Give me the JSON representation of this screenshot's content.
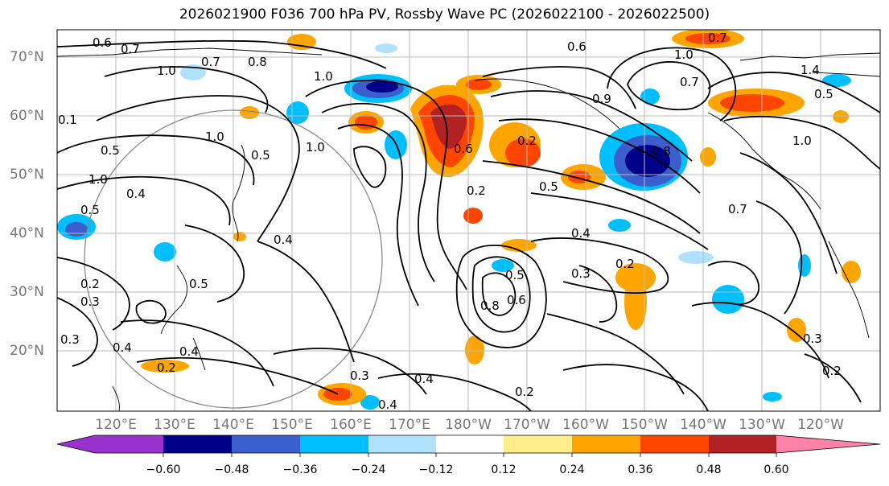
{
  "title": "2026021900 F036 700 hPa PV, Rossby Wave PC (2026022100 - 2026022500)",
  "lat_labels": [
    "70°N",
    "60°N",
    "50°N",
    "40°N",
    "30°N",
    "20°N"
  ],
  "lon_labels": [
    "120°E",
    "130°E",
    "140°E",
    "150°E",
    "160°E",
    "170°E",
    "180°W",
    "170°W",
    "160°W",
    "150°W",
    "140°W",
    "130°W",
    "120°W"
  ],
  "colorbar": {
    "ticks": [
      "−0.60",
      "−0.48",
      "−0.36",
      "−0.24",
      "−0.12",
      "0.12",
      "0.24",
      "0.36",
      "0.48",
      "0.60"
    ],
    "colors": [
      "#9932cc",
      "#00008b",
      "#3a5fcd",
      "#00bfff",
      "#b0e2ff",
      "#ffffff",
      "#ffec8b",
      "#ffa500",
      "#ff4500",
      "#b22222",
      "#ff82ab"
    ]
  },
  "contour_labels": [
    "0.6",
    "0.7",
    "0.7",
    "0.8",
    "1.0",
    "1.0",
    "1.0",
    "0.7",
    "0.6",
    "0.7",
    "1.0",
    "1.4",
    "1.0",
    "0.5",
    "0.1",
    "0.5",
    "1.0",
    "0.5",
    "0.4",
    "0.4",
    "0.5",
    "0.6",
    "0.2",
    "0.3",
    "0.2",
    "0.4",
    "0.3",
    "0.5",
    "0.8",
    "0.9",
    "0.2",
    "0.6",
    "0.4",
    "0.5",
    "0.2",
    "0.3",
    "0.3",
    "0.2",
    "0.8",
    "1.0",
    "0.7",
    "0.4",
    "0.2"
  ]
}
